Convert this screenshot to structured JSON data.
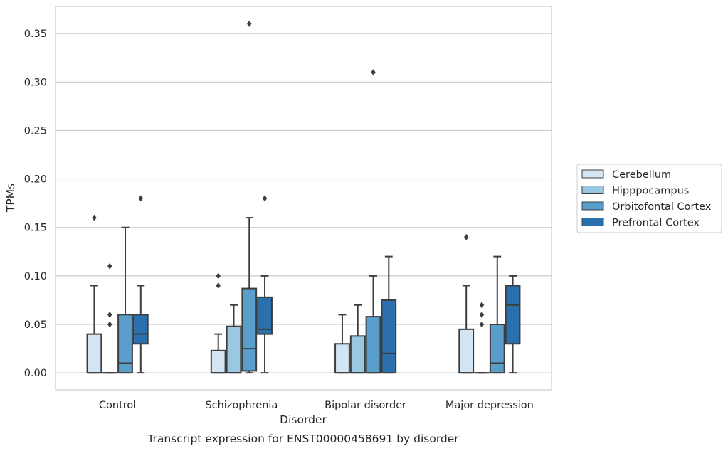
{
  "chart_data": {
    "type": "box",
    "caption": "Transcript expression for ENST00000458691 by disorder",
    "xlabel": "Disorder",
    "ylabel": "TPMs",
    "ylim": [
      -0.0175,
      0.378
    ],
    "yticks": [
      "0.00",
      "0.05",
      "0.10",
      "0.15",
      "0.20",
      "0.25",
      "0.30",
      "0.35"
    ],
    "categories": [
      "Control",
      "Schizophrenia",
      "Bipolar disorder",
      "Major depression"
    ],
    "grid": "horizontal",
    "legend_position": "right",
    "series": [
      {
        "name": "Cerebellum",
        "color": "#d3e4f3",
        "boxes": [
          {
            "q1": 0.0,
            "median": 0.0,
            "q3": 0.04,
            "wlow": 0.0,
            "whigh": 0.09,
            "outliers": [
              0.16
            ]
          },
          {
            "q1": 0.0,
            "median": 0.0,
            "q3": 0.023,
            "wlow": 0.0,
            "whigh": 0.04,
            "outliers": [
              0.09,
              0.1
            ]
          },
          {
            "q1": 0.0,
            "median": 0.0,
            "q3": 0.03,
            "wlow": 0.0,
            "whigh": 0.06,
            "outliers": []
          },
          {
            "q1": 0.0,
            "median": 0.0,
            "q3": 0.045,
            "wlow": 0.0,
            "whigh": 0.09,
            "outliers": [
              0.14
            ]
          }
        ]
      },
      {
        "name": "Hipppocampus",
        "color": "#9ac8e0",
        "boxes": [
          {
            "q1": 0.0,
            "median": 0.0,
            "q3": 0.0,
            "wlow": 0.0,
            "whigh": 0.0,
            "outliers": [
              0.05,
              0.06,
              0.11
            ]
          },
          {
            "q1": 0.0,
            "median": 0.0,
            "q3": 0.048,
            "wlow": 0.0,
            "whigh": 0.07,
            "outliers": []
          },
          {
            "q1": 0.0,
            "median": 0.0,
            "q3": 0.038,
            "wlow": 0.0,
            "whigh": 0.07,
            "outliers": []
          },
          {
            "q1": 0.0,
            "median": 0.0,
            "q3": 0.0,
            "wlow": 0.0,
            "whigh": 0.0,
            "outliers": [
              0.05,
              0.06,
              0.07
            ]
          }
        ]
      },
      {
        "name": "Orbitofontal Cortex",
        "color": "#5a9fcc",
        "boxes": [
          {
            "q1": 0.0,
            "median": 0.01,
            "q3": 0.06,
            "wlow": 0.0,
            "whigh": 0.15,
            "outliers": []
          },
          {
            "q1": 0.002,
            "median": 0.025,
            "q3": 0.087,
            "wlow": 0.0,
            "whigh": 0.16,
            "outliers": [
              0.36
            ]
          },
          {
            "q1": 0.0,
            "median": 0.0,
            "q3": 0.058,
            "wlow": 0.0,
            "whigh": 0.1,
            "outliers": [
              0.31
            ]
          },
          {
            "q1": 0.0,
            "median": 0.01,
            "q3": 0.05,
            "wlow": 0.0,
            "whigh": 0.12,
            "outliers": []
          }
        ]
      },
      {
        "name": "Prefrontal Cortex",
        "color": "#2a6fae",
        "boxes": [
          {
            "q1": 0.03,
            "median": 0.04,
            "q3": 0.06,
            "wlow": 0.0,
            "whigh": 0.09,
            "outliers": [
              0.18
            ]
          },
          {
            "q1": 0.04,
            "median": 0.045,
            "q3": 0.078,
            "wlow": 0.0,
            "whigh": 0.1,
            "outliers": [
              0.18
            ]
          },
          {
            "q1": 0.0,
            "median": 0.02,
            "q3": 0.075,
            "wlow": 0.0,
            "whigh": 0.12,
            "outliers": []
          },
          {
            "q1": 0.03,
            "median": 0.07,
            "q3": 0.09,
            "wlow": 0.0,
            "whigh": 0.1,
            "outliers": []
          }
        ]
      }
    ]
  }
}
